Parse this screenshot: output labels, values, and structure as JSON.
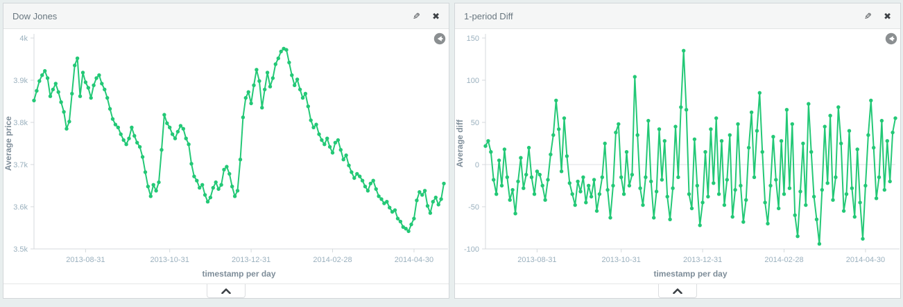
{
  "page": {
    "background": "#e8eeee"
  },
  "panels": [
    {
      "title": "Dow Jones",
      "icons": {
        "edit": "✎",
        "close": "✖",
        "back": "circle-left-arrow",
        "collapse": "chevron-up"
      }
    },
    {
      "title": "1-period Diff",
      "icons": {
        "edit": "✎",
        "close": "✖",
        "back": "circle-left-arrow",
        "collapse": "chevron-up"
      }
    }
  ],
  "chart_data": [
    {
      "type": "line",
      "title": "Dow Jones",
      "xlabel": "timestamp per day",
      "ylabel": "Average price",
      "color": "#23c876",
      "grid": false,
      "zero_line": false,
      "ylim": [
        3500,
        4000
      ],
      "yticks": [
        {
          "v": 4000,
          "label": "4k"
        },
        {
          "v": 3900,
          "label": "3.9k"
        },
        {
          "v": 3800,
          "label": "3.8k"
        },
        {
          "v": 3700,
          "label": "3.7k"
        },
        {
          "v": 3600,
          "label": "3.6k"
        },
        {
          "v": 3500,
          "label": "3.5k"
        }
      ],
      "xticks": [
        {
          "i": 19,
          "label": "2013-08-31"
        },
        {
          "i": 50,
          "label": "2013-10-31"
        },
        {
          "i": 80,
          "label": "2013-12-31"
        },
        {
          "i": 110,
          "label": "2014-02-28"
        },
        {
          "i": 140,
          "label": "2014-04-30"
        }
      ],
      "values": [
        3852,
        3875,
        3898,
        3912,
        3922,
        3905,
        3862,
        3878,
        3892,
        3872,
        3848,
        3825,
        3785,
        3802,
        3868,
        3935,
        3952,
        3862,
        3918,
        3895,
        3882,
        3858,
        3888,
        3905,
        3912,
        3892,
        3878,
        3858,
        3832,
        3808,
        3795,
        3788,
        3772,
        3758,
        3748,
        3762,
        3788,
        3768,
        3752,
        3742,
        3718,
        3682,
        3648,
        3625,
        3652,
        3638,
        3658,
        3735,
        3818,
        3798,
        3788,
        3772,
        3762,
        3778,
        3792,
        3785,
        3762,
        3748,
        3702,
        3672,
        3662,
        3645,
        3652,
        3628,
        3612,
        3622,
        3645,
        3658,
        3642,
        3652,
        3688,
        3695,
        3678,
        3648,
        3625,
        3638,
        3712,
        3812,
        3858,
        3872,
        3845,
        3888,
        3925,
        3898,
        3835,
        3878,
        3918,
        3885,
        3905,
        3938,
        3952,
        3968,
        3975,
        3972,
        3942,
        3912,
        3888,
        3902,
        3878,
        3858,
        3868,
        3838,
        3805,
        3788,
        3795,
        3772,
        3758,
        3748,
        3762,
        3742,
        3728,
        3752,
        3758,
        3735,
        3712,
        3722,
        3698,
        3682,
        3668,
        3678,
        3672,
        3662,
        3648,
        3638,
        3655,
        3662,
        3642,
        3625,
        3618,
        3608,
        3612,
        3598,
        3588,
        3592,
        3572,
        3565,
        3552,
        3548,
        3542,
        3558,
        3572,
        3615,
        3635,
        3628,
        3638,
        3602,
        3585,
        3612,
        3622,
        3605,
        3618,
        3655
      ]
    },
    {
      "type": "line",
      "title": "1-period Diff",
      "xlabel": "timestamp per day",
      "ylabel": "Average diff",
      "color": "#23c876",
      "grid": false,
      "zero_line": true,
      "ylim": [
        -100,
        150
      ],
      "yticks": [
        {
          "v": 150,
          "label": "150"
        },
        {
          "v": 100,
          "label": "100"
        },
        {
          "v": 50,
          "label": "50"
        },
        {
          "v": 0,
          "label": "0"
        },
        {
          "v": -50,
          "label": "-50"
        },
        {
          "v": -100,
          "label": "-100"
        }
      ],
      "xticks": [
        {
          "i": 19,
          "label": "2013-08-31"
        },
        {
          "i": 50,
          "label": "2013-10-31"
        },
        {
          "i": 80,
          "label": "2013-12-31"
        },
        {
          "i": 110,
          "label": "2014-02-28"
        },
        {
          "i": 140,
          "label": "2014-04-30"
        }
      ],
      "values": [
        22,
        28,
        15,
        -18,
        -35,
        5,
        -25,
        18,
        -15,
        -42,
        -30,
        -58,
        -20,
        8,
        -28,
        -12,
        20,
        -15,
        -35,
        -8,
        -12,
        -25,
        -42,
        -18,
        12,
        35,
        76,
        42,
        -8,
        55,
        10,
        -22,
        -35,
        -48,
        -20,
        -32,
        -15,
        -45,
        -25,
        -38,
        -18,
        -55,
        -35,
        -15,
        25,
        -30,
        -63,
        -25,
        38,
        48,
        -15,
        -35,
        15,
        -25,
        -12,
        104,
        35,
        -28,
        -48,
        -15,
        52,
        -20,
        -63,
        -32,
        42,
        -18,
        28,
        -38,
        -65,
        -28,
        45,
        -15,
        68,
        135,
        65,
        -35,
        -52,
        30,
        -25,
        -72,
        -45,
        15,
        -38,
        42,
        -22,
        55,
        -35,
        28,
        -48,
        -18,
        35,
        -62,
        -30,
        48,
        -25,
        -68,
        -42,
        20,
        62,
        -15,
        40,
        85,
        15,
        -45,
        -70,
        -25,
        33,
        -18,
        -52,
        28,
        -35,
        65,
        -28,
        48,
        -60,
        -85,
        -32,
        25,
        -48,
        72,
        15,
        -38,
        -65,
        -94,
        -30,
        45,
        -22,
        58,
        -42,
        -15,
        68,
        25,
        -55,
        -35,
        40,
        -28,
        -62,
        18,
        -45,
        -88,
        -25,
        35,
        76,
        20,
        -40,
        -15,
        52,
        -30,
        28,
        -20,
        38,
        55
      ]
    }
  ]
}
